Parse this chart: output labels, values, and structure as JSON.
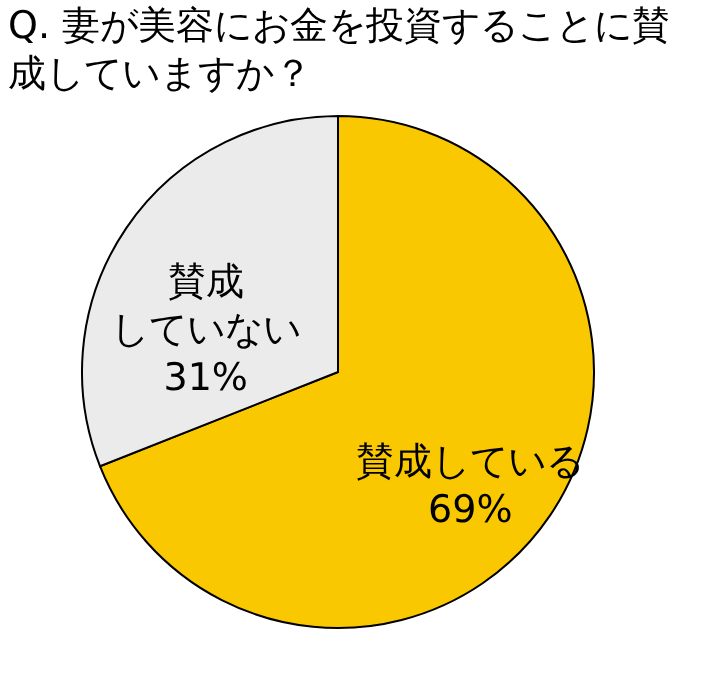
{
  "chart_data": {
    "type": "pie",
    "title": "Q. 妻が美容にお金を投資することに賛成していますか？",
    "categories": [
      "賛成している",
      "賛成していない"
    ],
    "values": [
      69,
      31
    ],
    "colors": [
      "#f9c800",
      "#ebebeb"
    ],
    "value_labels": [
      "69%",
      "31%"
    ]
  }
}
